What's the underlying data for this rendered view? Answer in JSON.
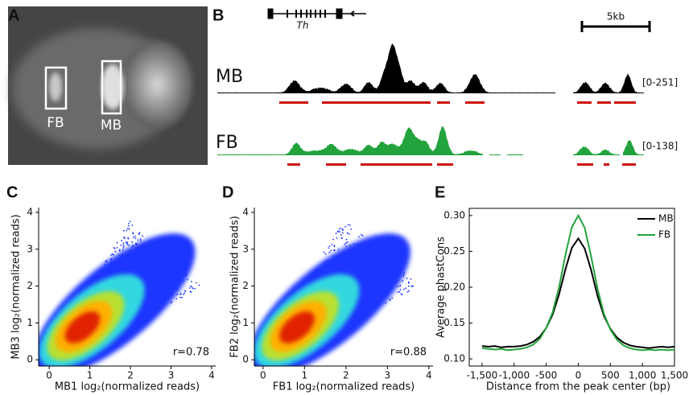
{
  "panel_labels": [
    "A",
    "B",
    "C",
    "D",
    "E"
  ],
  "image_panel": {
    "labels": [
      "FB",
      "MB"
    ]
  },
  "tracks": {
    "gene": "Th",
    "scale": "5kb",
    "tracks": [
      {
        "name": "MB",
        "range": "[0-251]"
      },
      {
        "name": "FB",
        "range": "[0-138]"
      }
    ]
  },
  "chart_data": [
    {
      "type": "scatter",
      "xlabel": "MB1 log₂(normalized reads)",
      "ylabel": "MB3 log₂(normalized reads)",
      "annotation": "r=0.78",
      "xlim": [
        -0.26,
        4.1
      ],
      "ylim": [
        -0.17,
        4.13
      ],
      "xticks": [
        0,
        1,
        2,
        3,
        4
      ],
      "yticks": [
        0,
        1,
        2,
        3,
        4
      ]
    },
    {
      "type": "scatter",
      "xlabel": "FB1 log₂(normalized reads)",
      "ylabel": "FB2 log₂(normalized reads)",
      "annotation": "r=0.88",
      "xlim": [
        -0.21,
        4.1
      ],
      "ylim": [
        -0.17,
        4.13
      ],
      "xticks": [
        0,
        1,
        2,
        3,
        4
      ],
      "yticks": [
        0,
        1,
        2,
        3,
        4
      ]
    },
    {
      "type": "line",
      "xlabel": "Distance from the peak center (bp)",
      "ylabel": "Average phastCons",
      "xlim": [
        -1700,
        1500
      ],
      "ylim": [
        0.09,
        0.31
      ],
      "xticks": [
        {
          "value": -1500,
          "label": "-1,500"
        },
        {
          "value": -1000,
          "label": "-1,000"
        },
        -500,
        0,
        500,
        {
          "value": 1000,
          "label": "1,000"
        },
        {
          "value": 1500,
          "label": "1,500"
        }
      ],
      "yticks": [
        {
          "value": 0.1,
          "label": "0.10"
        },
        0.15,
        {
          "value": 0.2,
          "label": "0.20"
        },
        0.25,
        {
          "value": 0.3,
          "label": "0.30"
        }
      ],
      "legend": "top-right",
      "x": [
        -1500,
        -1400,
        -1300,
        -1200,
        -1100,
        -1000,
        -900,
        -800,
        -700,
        -600,
        -500,
        -400,
        -300,
        -200,
        -100,
        0,
        100,
        200,
        300,
        400,
        500,
        600,
        700,
        800,
        900,
        1000,
        1100,
        1200,
        1300,
        1400,
        1500
      ],
      "series": [
        {
          "name": "MB",
          "color": "#000000",
          "values": [
            0.118,
            0.117,
            0.118,
            0.116,
            0.117,
            0.117,
            0.118,
            0.12,
            0.124,
            0.131,
            0.143,
            0.162,
            0.19,
            0.225,
            0.255,
            0.268,
            0.254,
            0.224,
            0.188,
            0.16,
            0.142,
            0.13,
            0.123,
            0.119,
            0.117,
            0.116,
            0.115,
            0.116,
            0.117,
            0.116,
            0.117
          ]
        },
        {
          "name": "FB",
          "color": "#22a33c",
          "values": [
            0.115,
            0.114,
            0.113,
            0.114,
            0.112,
            0.113,
            0.114,
            0.116,
            0.12,
            0.128,
            0.143,
            0.165,
            0.2,
            0.245,
            0.284,
            0.3,
            0.283,
            0.243,
            0.198,
            0.163,
            0.141,
            0.127,
            0.119,
            0.115,
            0.113,
            0.112,
            0.113,
            0.112,
            0.113,
            0.112,
            0.113
          ]
        }
      ]
    }
  ]
}
